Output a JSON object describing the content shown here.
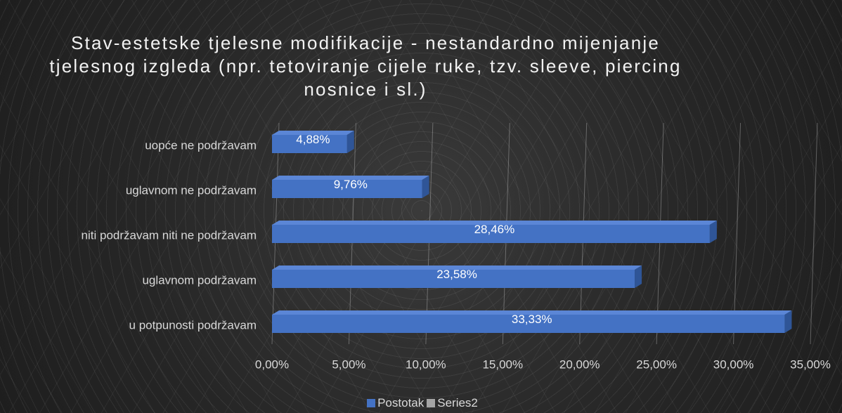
{
  "chart_data": {
    "type": "bar",
    "orientation": "horizontal",
    "title": "Stav-estetske tjelesne modifikacije -  nestandardno mijenjanje tjelesnog izgleda (npr. tetoviranje cijele ruke, tzv. sleeve, piercing nosnice i sl.)",
    "categories": [
      "uopće ne podržavam",
      "uglavnom ne podržavam",
      "niti podržavam niti ne podržavam",
      "uglavnom podržavam",
      "u potpunosti podržavam"
    ],
    "series": [
      {
        "name": "Postotak",
        "color": "#4472c4",
        "values": [
          4.88,
          9.76,
          28.46,
          23.58,
          33.33
        ],
        "value_labels": [
          "4,88%",
          "9,76%",
          "28,46%",
          "23,58%",
          "33,33%"
        ]
      },
      {
        "name": "Series2",
        "color": "#a5a5a5",
        "values": [
          null,
          null,
          null,
          null,
          null
        ]
      }
    ],
    "xlim": [
      0,
      35
    ],
    "xticks": [
      {
        "value": 0,
        "label": "0,00%"
      },
      {
        "value": 5,
        "label": "5,00%"
      },
      {
        "value": 10,
        "label": "10,00%"
      },
      {
        "value": 15,
        "label": "15,00%"
      },
      {
        "value": 20,
        "label": "20,00%"
      },
      {
        "value": 25,
        "label": "25,00%"
      },
      {
        "value": 30,
        "label": "30,00%"
      },
      {
        "value": 35,
        "label": "35,00%"
      }
    ],
    "grid": true,
    "legend": "bottom"
  }
}
